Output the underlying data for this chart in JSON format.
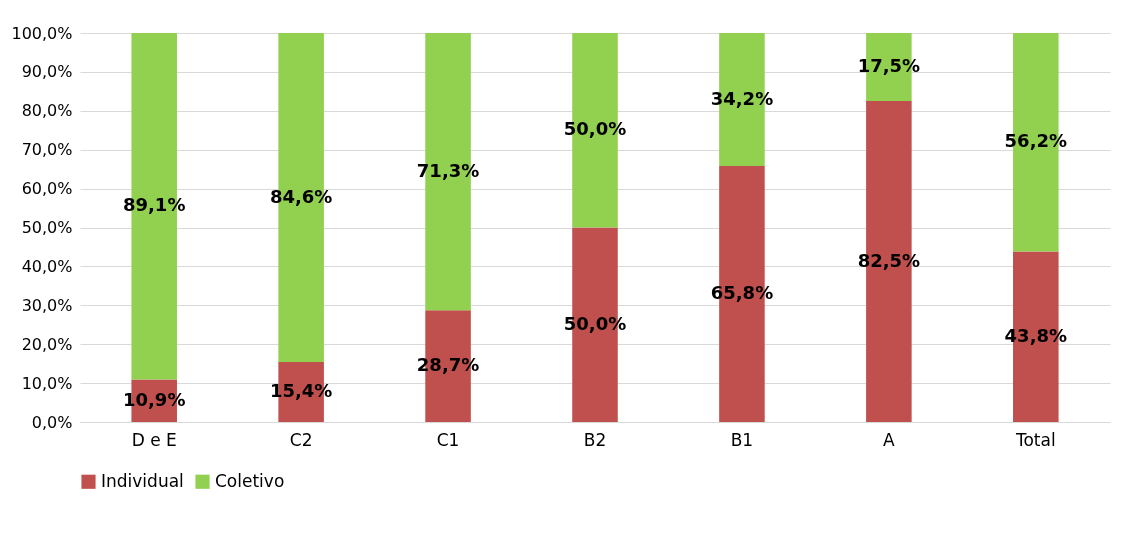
{
  "chart_data": {
    "type": "bar",
    "stacked": true,
    "categories": [
      "D e E",
      "C2",
      "C1",
      "B2",
      "B1",
      "A",
      "Total"
    ],
    "series": [
      {
        "name": "Individual",
        "color": "#c0504d",
        "values": [
          10.9,
          15.4,
          28.7,
          50.0,
          65.8,
          82.5,
          43.8
        ],
        "value_labels": [
          "10,9%",
          "15,4%",
          "28,7%",
          "50,0%",
          "65,8%",
          "82,5%",
          "43,8%"
        ]
      },
      {
        "name": "Coletivo",
        "color": "#92d050",
        "values": [
          89.1,
          84.6,
          71.3,
          50.0,
          34.2,
          17.5,
          56.2
        ],
        "value_labels": [
          "89,1%",
          "84,6%",
          "71,3%",
          "50,0%",
          "34,2%",
          "17,5%",
          "56,2%"
        ]
      }
    ],
    "ylim": [
      0,
      100
    ],
    "yticks": [
      {
        "value": 0,
        "label": "0,0%"
      },
      {
        "value": 10,
        "label": "10,0%"
      },
      {
        "value": 20,
        "label": "20,0%"
      },
      {
        "value": 30,
        "label": "30,0%"
      },
      {
        "value": 40,
        "label": "40,0%"
      },
      {
        "value": 50,
        "label": "50,0%"
      },
      {
        "value": 60,
        "label": "60,0%"
      },
      {
        "value": 70,
        "label": "70,0%"
      },
      {
        "value": 80,
        "label": "80,0%"
      },
      {
        "value": 90,
        "label": "90,0%"
      },
      {
        "value": 100,
        "label": "100,0%"
      }
    ],
    "grid": "y",
    "legend": "bottom"
  }
}
